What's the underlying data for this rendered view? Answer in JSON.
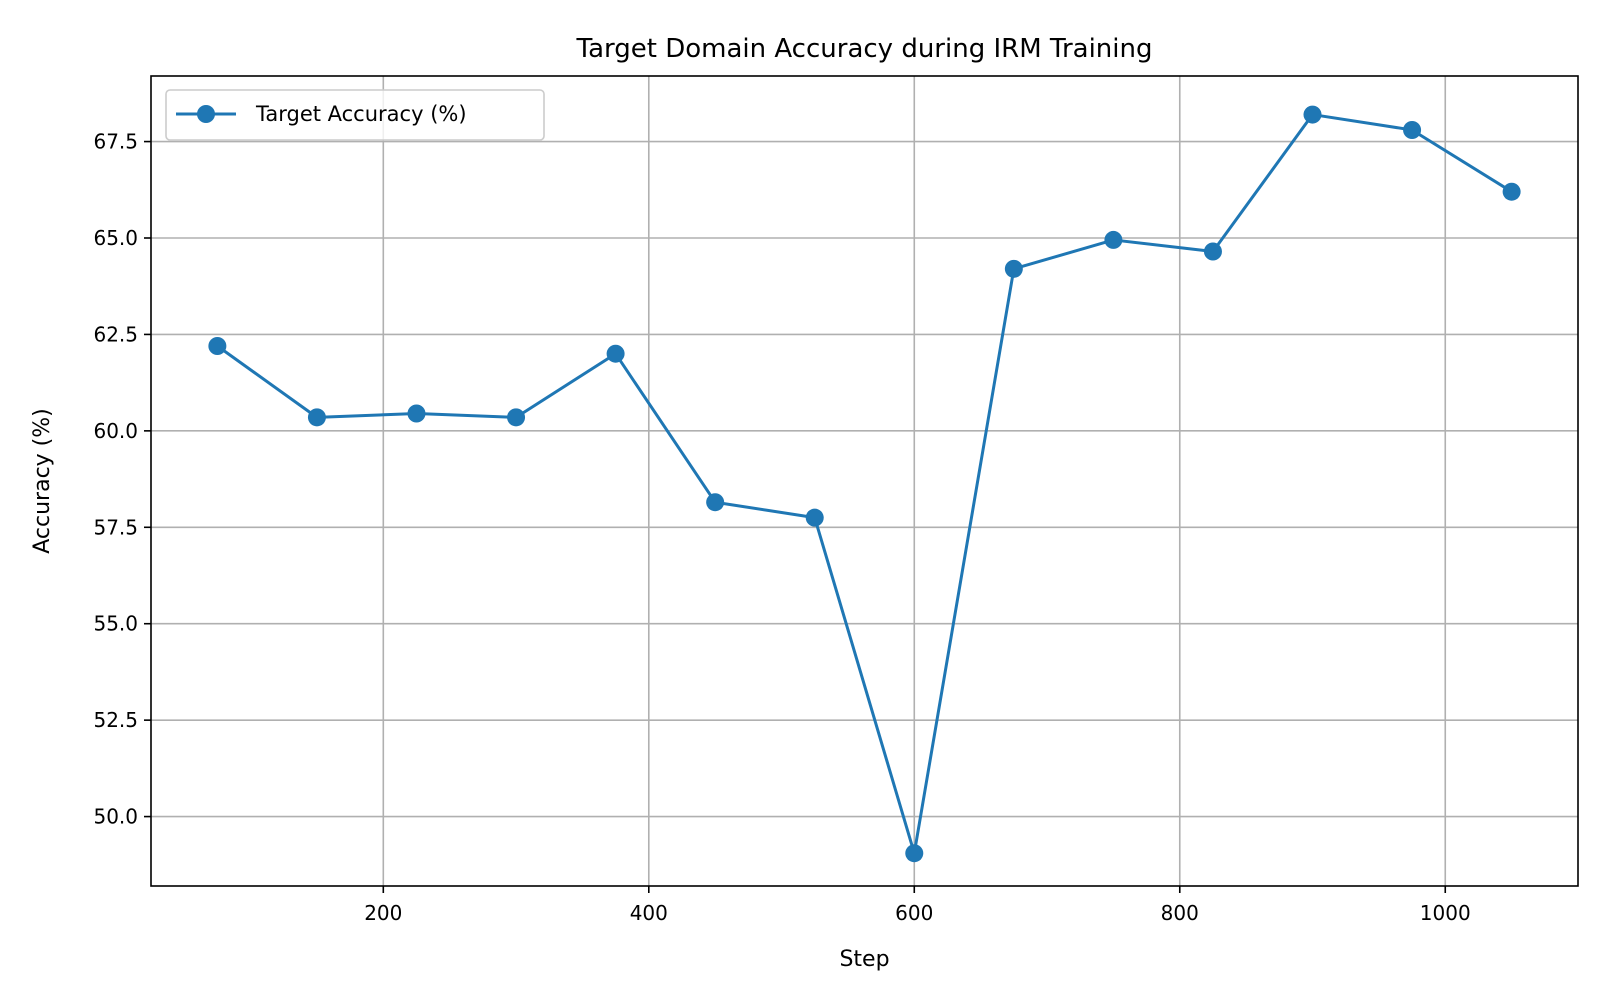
{
  "chart_data": {
    "type": "line",
    "title": "Target Domain Accuracy during IRM Training",
    "xlabel": "Step",
    "ylabel": "Accuracy (%)",
    "xlim": [
      25,
      1100
    ],
    "ylim": [
      48.2,
      69.2
    ],
    "xticks": [
      200,
      400,
      600,
      800,
      1000
    ],
    "yticks": [
      50.0,
      52.5,
      55.0,
      57.5,
      60.0,
      62.5,
      65.0,
      67.5
    ],
    "grid": true,
    "legend_position": "upper-left",
    "series": [
      {
        "name": "Target Accuracy (%)",
        "color": "#1f77b4",
        "marker": "circle",
        "x": [
          75,
          150,
          225,
          300,
          375,
          450,
          525,
          600,
          675,
          750,
          825,
          900,
          975,
          1050
        ],
        "y": [
          62.2,
          60.35,
          60.45,
          60.35,
          62.0,
          58.15,
          57.75,
          49.05,
          64.2,
          64.95,
          64.65,
          68.2,
          67.8,
          66.2
        ]
      }
    ]
  }
}
